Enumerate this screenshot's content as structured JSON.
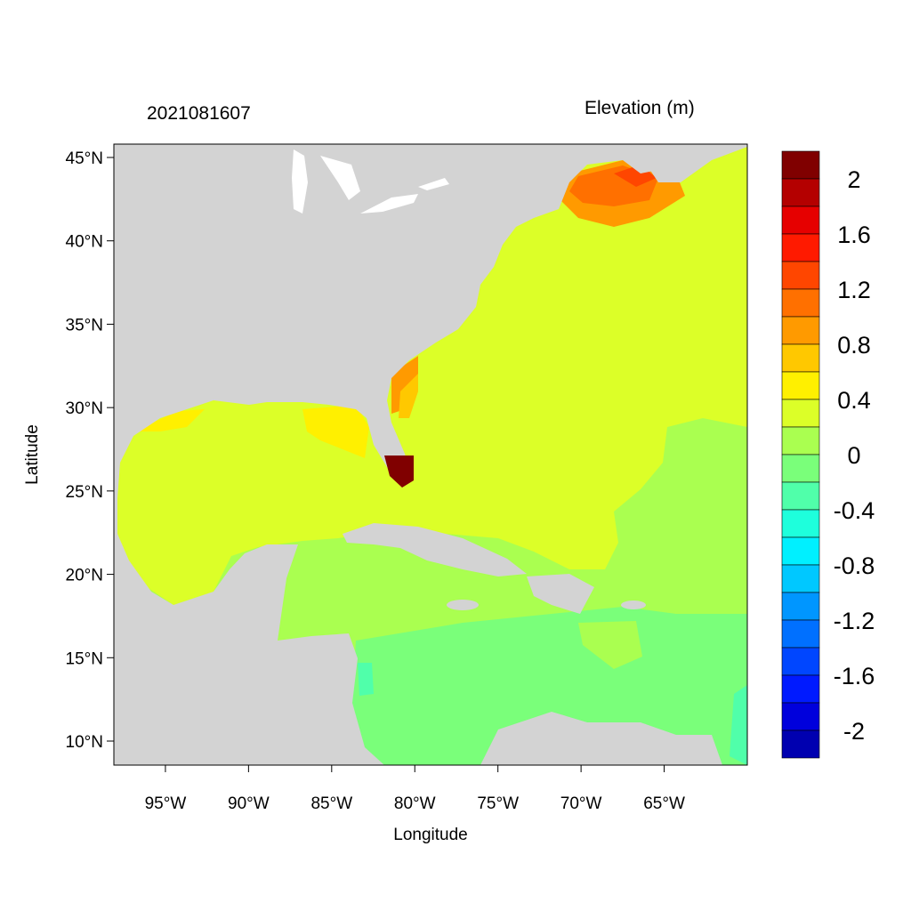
{
  "title_left": "2021081607",
  "title_right": "Elevation (m)",
  "x_axis": {
    "label": "Longitude",
    "range": [
      -98.1,
      -60.0
    ],
    "ticks": [
      {
        "value": -95,
        "label": "95°W"
      },
      {
        "value": -90,
        "label": "90°W"
      },
      {
        "value": -85,
        "label": "85°W"
      },
      {
        "value": -80,
        "label": "80°W"
      },
      {
        "value": -75,
        "label": "75°W"
      },
      {
        "value": -70,
        "label": "70°W"
      },
      {
        "value": -65,
        "label": "65°W"
      }
    ]
  },
  "y_axis": {
    "label": "Latitude",
    "range": [
      8.56,
      45.8
    ],
    "ticks": [
      {
        "value": 45,
        "label": "45°N"
      },
      {
        "value": 40,
        "label": "40°N"
      },
      {
        "value": 35,
        "label": "35°N"
      },
      {
        "value": 30,
        "label": "30°N"
      },
      {
        "value": 25,
        "label": "25°N"
      },
      {
        "value": 20,
        "label": "20°N"
      },
      {
        "value": 15,
        "label": "15°N"
      },
      {
        "value": 10,
        "label": "10°N"
      }
    ]
  },
  "colorbar": {
    "min": -2.2,
    "max": 2.2,
    "step": 0.2,
    "colors_top_to_bottom": [
      "#800000",
      "#b40000",
      "#e60000",
      "#ff1a00",
      "#ff4600",
      "#ff7000",
      "#ff9a00",
      "#ffc800",
      "#fff000",
      "#dcff28",
      "#aaff50",
      "#7aff7a",
      "#50ffaa",
      "#1effdc",
      "#00f0ff",
      "#00c8ff",
      "#0096ff",
      "#0070ff",
      "#0046ff",
      "#001aff",
      "#0000dc",
      "#0000b0"
    ],
    "labels": [
      {
        "value": 2,
        "label": "2"
      },
      {
        "value": 1.6,
        "label": "1.6"
      },
      {
        "value": 1.2,
        "label": "1.2"
      },
      {
        "value": 0.8,
        "label": "0.8"
      },
      {
        "value": 0.4,
        "label": "0.4"
      },
      {
        "value": 0,
        "label": "0"
      },
      {
        "value": -0.4,
        "label": "-0.4"
      },
      {
        "value": -0.8,
        "label": "-0.8"
      },
      {
        "value": -1.2,
        "label": "-1.2"
      },
      {
        "value": -1.6,
        "label": "-1.6"
      },
      {
        "value": -2,
        "label": "-2"
      }
    ]
  },
  "land_color": "#d3d3d3"
}
